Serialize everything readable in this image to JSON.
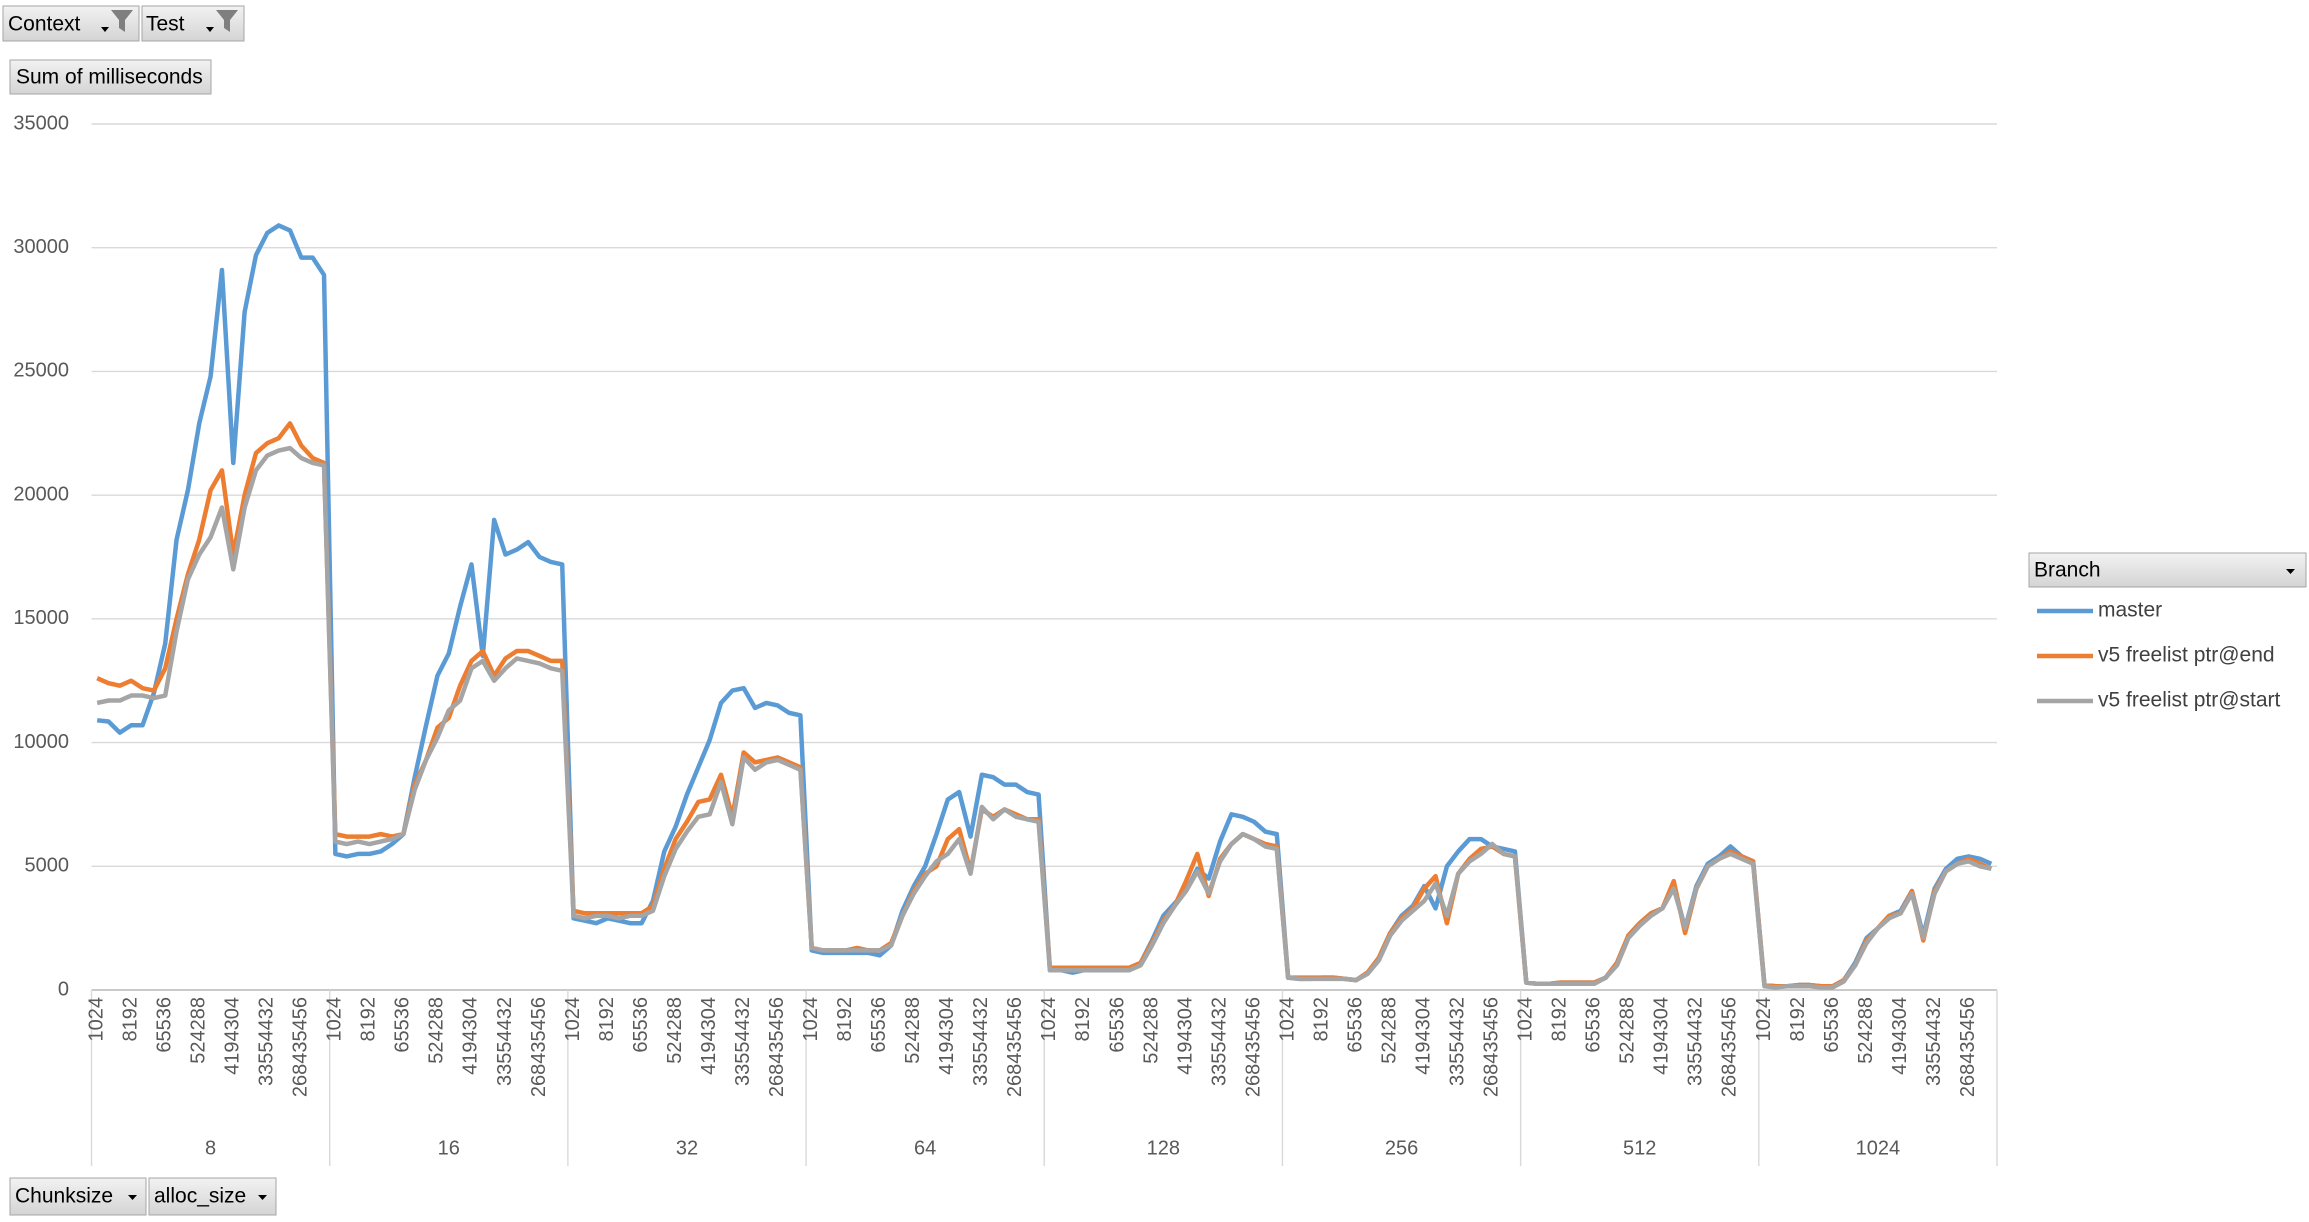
{
  "pivot": {
    "filters": [
      "Context",
      "Test"
    ],
    "value_field": "Sum of milliseconds",
    "row_fields": [
      "Chunksize",
      "alloc_size"
    ]
  },
  "chart_data": {
    "type": "line",
    "legend_title": "Branch",
    "legend_position": "right",
    "grid": true,
    "ylim": [
      0,
      35000
    ],
    "yticks": [
      0,
      5000,
      10000,
      15000,
      20000,
      25000,
      30000,
      35000
    ],
    "category_groups": [
      "8",
      "16",
      "32",
      "64",
      "128",
      "256",
      "512",
      "1024"
    ],
    "categories": [
      "1024",
      null,
      null,
      "8192",
      null,
      null,
      "65536",
      null,
      null,
      "524288",
      null,
      null,
      "4194304",
      null,
      null,
      "33554432",
      null,
      null,
      "268435456",
      null,
      null,
      "1024",
      null,
      null,
      "8192",
      null,
      null,
      "65536",
      null,
      null,
      "524288",
      null,
      null,
      "4194304",
      null,
      null,
      "33554432",
      null,
      null,
      "268435456",
      null,
      null,
      "1024",
      null,
      null,
      "8192",
      null,
      null,
      "65536",
      null,
      null,
      "524288",
      null,
      null,
      "4194304",
      null,
      null,
      "33554432",
      null,
      null,
      "268435456",
      null,
      null,
      "1024",
      null,
      null,
      "8192",
      null,
      null,
      "65536",
      null,
      null,
      "524288",
      null,
      null,
      "4194304",
      null,
      null,
      "33554432",
      null,
      null,
      "268435456",
      null,
      null,
      "1024",
      null,
      null,
      "8192",
      null,
      null,
      "65536",
      null,
      null,
      "524288",
      null,
      null,
      "4194304",
      null,
      null,
      "33554432",
      null,
      null,
      "268435456",
      null,
      null,
      "1024",
      null,
      null,
      "8192",
      null,
      null,
      "65536",
      null,
      null,
      "524288",
      null,
      null,
      "4194304",
      null,
      null,
      "33554432",
      null,
      null,
      "268435456",
      null,
      null,
      "1024",
      null,
      null,
      "8192",
      null,
      null,
      "65536",
      null,
      null,
      "524288",
      null,
      null,
      "4194304",
      null,
      null,
      "33554432",
      null,
      null,
      "268435456",
      null,
      null,
      "1024",
      null,
      null,
      "8192",
      null,
      null,
      "65536",
      null,
      null,
      "524288",
      null,
      null,
      "4194304",
      null,
      null,
      "33554432",
      null,
      null,
      "268435456",
      null,
      null
    ],
    "series": [
      {
        "name": "master",
        "color": "#5b9bd5",
        "values": [
          10900,
          10850,
          10400,
          10700,
          10700,
          12000,
          14000,
          18200,
          20200,
          22900,
          24800,
          29100,
          21300,
          27400,
          29700,
          30600,
          30900,
          30700,
          29600,
          29600,
          28900,
          5500,
          5400,
          5500,
          5500,
          5600,
          5900,
          6300,
          8600,
          10700,
          12700,
          13600,
          15500,
          17200,
          13500,
          19000,
          17600,
          17800,
          18100,
          17500,
          17300,
          17200,
          2900,
          2800,
          2700,
          2900,
          2800,
          2700,
          2700,
          3600,
          5600,
          6600,
          7900,
          9000,
          10100,
          11600,
          12100,
          12200,
          11400,
          11600,
          11500,
          11200,
          11100,
          1600,
          1500,
          1500,
          1500,
          1500,
          1500,
          1400,
          1800,
          3200,
          4200,
          5000,
          6300,
          7700,
          8000,
          6200,
          8700,
          8600,
          8300,
          8300,
          8000,
          7900,
          800,
          800,
          700,
          800,
          800,
          800,
          800,
          800,
          1100,
          2000,
          3000,
          3500,
          4000,
          4900,
          4500,
          6000,
          7100,
          7000,
          6800,
          6400,
          6300,
          500,
          450,
          450,
          500,
          500,
          450,
          400,
          700,
          1300,
          2300,
          3000,
          3400,
          4200,
          3300,
          5000,
          5600,
          6100,
          6100,
          5800,
          5700,
          5600,
          300,
          250,
          250,
          300,
          300,
          300,
          300,
          500,
          1100,
          2200,
          2700,
          3100,
          3300,
          4200,
          2500,
          4200,
          5100,
          5400,
          5800,
          5400,
          5200,
          200,
          150,
          150,
          200,
          200,
          150,
          150,
          400,
          1100,
          2100,
          2500,
          3000,
          3200,
          4000,
          2200,
          4100,
          4900,
          5300,
          5400,
          5300,
          5100
        ]
      },
      {
        "name": "v5 freelist ptr@end",
        "color": "#ed7d31",
        "values": [
          12600,
          12400,
          12300,
          12500,
          12200,
          12100,
          13000,
          15000,
          16800,
          18200,
          20200,
          21000,
          17600,
          20000,
          21700,
          22100,
          22300,
          22900,
          22000,
          21500,
          21300,
          6300,
          6200,
          6200,
          6200,
          6300,
          6200,
          6300,
          8300,
          9300,
          10600,
          11000,
          12300,
          13300,
          13700,
          12700,
          13400,
          13700,
          13700,
          13500,
          13300,
          13300,
          3200,
          3100,
          3100,
          3100,
          3100,
          3100,
          3100,
          3400,
          4900,
          6100,
          6800,
          7600,
          7700,
          8700,
          7000,
          9600,
          9200,
          9300,
          9400,
          9200,
          9000,
          1700,
          1600,
          1600,
          1600,
          1700,
          1600,
          1600,
          1900,
          3000,
          4000,
          4700,
          5000,
          6100,
          6500,
          4800,
          7300,
          7000,
          7300,
          7100,
          6900,
          6900,
          900,
          900,
          900,
          900,
          900,
          900,
          900,
          900,
          1100,
          1900,
          2800,
          3400,
          4400,
          5500,
          3800,
          5300,
          5900,
          6300,
          6100,
          5900,
          5800,
          500,
          500,
          500,
          500,
          500,
          450,
          400,
          700,
          1300,
          2300,
          2900,
          3300,
          4100,
          4600,
          2700,
          4700,
          5300,
          5700,
          5800,
          5500,
          5400,
          300,
          250,
          250,
          300,
          300,
          300,
          300,
          500,
          1100,
          2200,
          2700,
          3100,
          3300,
          4400,
          2300,
          4100,
          5000,
          5300,
          5600,
          5400,
          5200,
          200,
          150,
          150,
          200,
          200,
          150,
          150,
          400,
          1000,
          2000,
          2500,
          3000,
          3100,
          4000,
          2000,
          4000,
          4800,
          5100,
          5300,
          5100,
          4900
        ]
      },
      {
        "name": "v5 freelist ptr@start",
        "color": "#a5a5a5",
        "values": [
          11600,
          11700,
          11700,
          11900,
          11900,
          11800,
          11900,
          14500,
          16600,
          17600,
          18300,
          19500,
          17000,
          19500,
          21000,
          21600,
          21800,
          21900,
          21500,
          21300,
          21200,
          6000,
          5900,
          6000,
          5900,
          6000,
          6100,
          6300,
          8100,
          9300,
          10200,
          11300,
          11700,
          13000,
          13300,
          12500,
          13000,
          13400,
          13300,
          13200,
          13000,
          12900,
          3000,
          2900,
          3000,
          3000,
          2900,
          3000,
          3000,
          3200,
          4600,
          5700,
          6400,
          7000,
          7100,
          8400,
          6700,
          9400,
          8900,
          9200,
          9300,
          9100,
          8900,
          1700,
          1600,
          1600,
          1600,
          1600,
          1600,
          1600,
          1800,
          3000,
          3900,
          4600,
          5200,
          5500,
          6100,
          4700,
          7400,
          6900,
          7300,
          7000,
          6900,
          6800,
          800,
          800,
          800,
          800,
          800,
          800,
          800,
          800,
          1000,
          1800,
          2700,
          3400,
          4000,
          4800,
          3900,
          5200,
          5900,
          6300,
          6100,
          5800,
          5700,
          500,
          450,
          450,
          450,
          450,
          450,
          400,
          650,
          1200,
          2200,
          2800,
          3200,
          3600,
          4300,
          3000,
          4700,
          5200,
          5500,
          5900,
          5500,
          5400,
          300,
          250,
          250,
          250,
          250,
          250,
          250,
          500,
          1000,
          2100,
          2600,
          3000,
          3300,
          4100,
          2500,
          4100,
          5000,
          5300,
          5500,
          5300,
          5100,
          150,
          100,
          150,
          150,
          150,
          100,
          100,
          350,
          1000,
          1900,
          2500,
          2900,
          3100,
          3900,
          2100,
          3900,
          4800,
          5100,
          5200,
          5000,
          4900
        ]
      }
    ]
  }
}
